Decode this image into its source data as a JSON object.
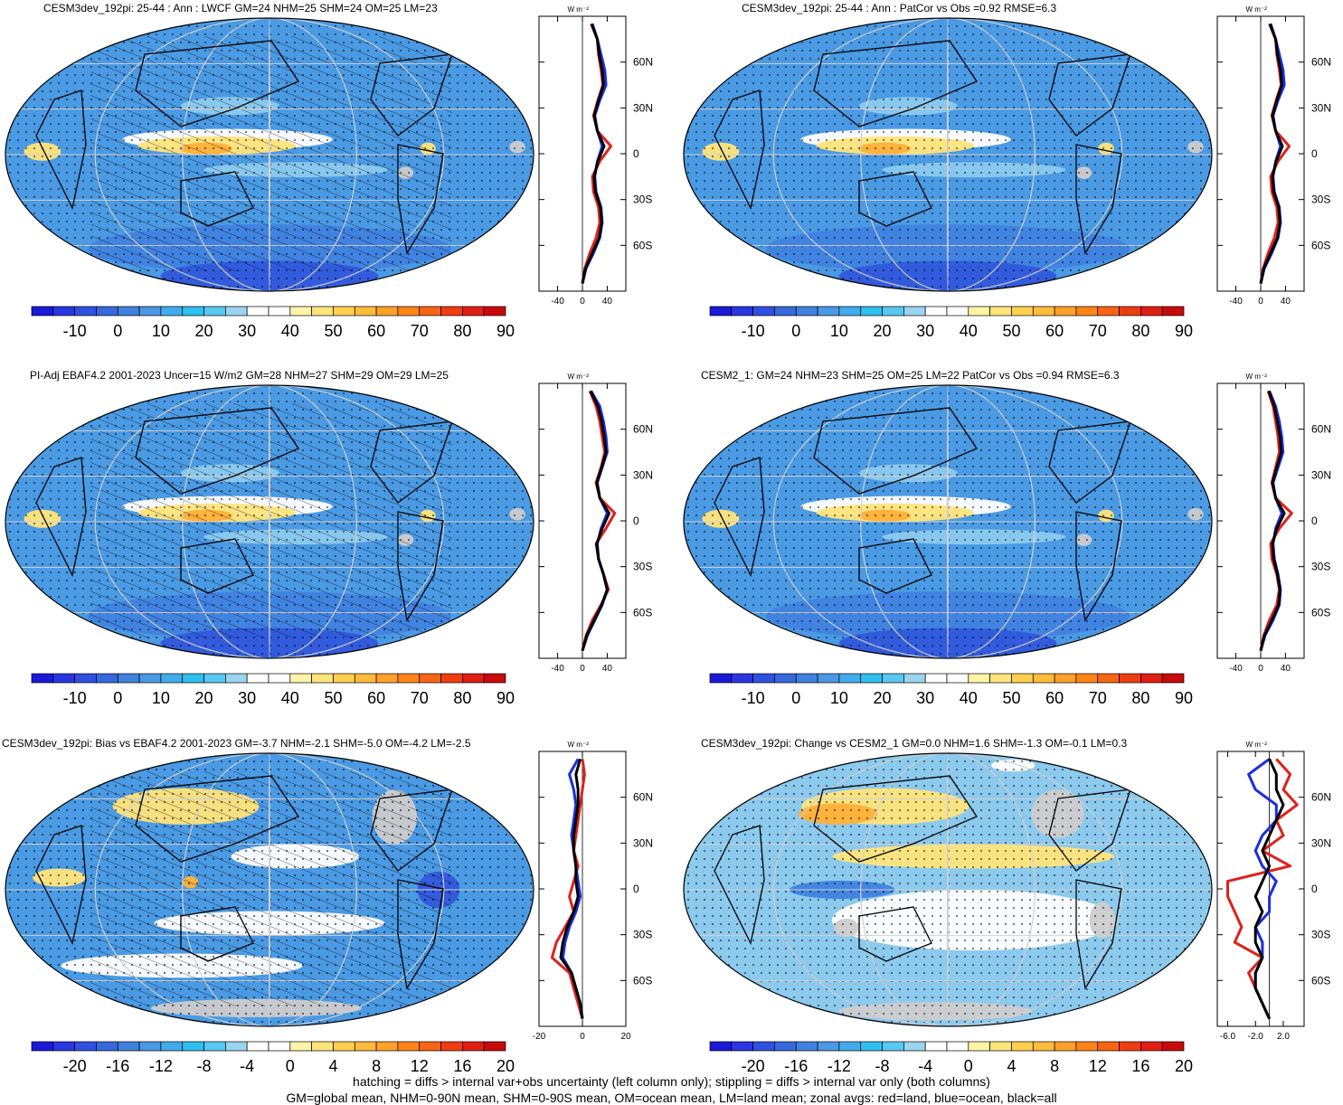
{
  "chart_data": [
    {
      "type": "heatmap",
      "title": "CESM3dev_192pi: 25-44 : Ann : LWCF GM=24 NHM=25 SHM=24 OM=25 LM=23",
      "colorbar": {
        "labels": [
          "-10",
          "0",
          "10",
          "20",
          "30",
          "40",
          "50",
          "60",
          "70",
          "80",
          "90"
        ],
        "palette": "field"
      },
      "zonal_avg": {
        "unit": "W m⁻²",
        "ylim": [
          -90,
          90
        ],
        "xlim": [
          -70,
          70
        ],
        "xticks": [
          "-40",
          "0",
          "40"
        ],
        "yticks": [
          {
            "lat": 60,
            "label": "60N"
          },
          {
            "lat": 30,
            "label": "30N"
          },
          {
            "lat": 0,
            "label": "0"
          },
          {
            "lat": -30,
            "label": "30S"
          },
          {
            "lat": -60,
            "label": "60S"
          }
        ],
        "lat": [
          -85,
          -75,
          -65,
          -55,
          -45,
          -35,
          -25,
          -15,
          -5,
          5,
          15,
          25,
          35,
          45,
          55,
          65,
          75,
          85
        ],
        "series": [
          {
            "color": "#e0201a",
            "values": [
              0,
              4,
              12,
              22,
              28,
              26,
              18,
              16,
              28,
              46,
              24,
              18,
              25,
              33,
              30,
              26,
              24,
              14
            ]
          },
          {
            "color": "#1a2de0",
            "values": [
              0,
              6,
              18,
              28,
              32,
              30,
              22,
              20,
              24,
              32,
              24,
              20,
              28,
              38,
              36,
              30,
              24,
              16
            ]
          },
          {
            "color": "#000000",
            "values": [
              0,
              5,
              16,
              27,
              31,
              29,
              21,
              19,
              25,
              35,
              24,
              19,
              26,
              34,
              32,
              27,
              24,
              15
            ]
          }
        ]
      }
    },
    {
      "type": "heatmap",
      "title": "CESM3dev_192pi: 25-44 : Ann : PatCor vs Obs =0.92 RMSE=6.3",
      "colorbar": {
        "labels": [
          "-10",
          "0",
          "10",
          "20",
          "30",
          "40",
          "50",
          "60",
          "70",
          "80",
          "90"
        ],
        "palette": "field"
      },
      "zonal_avg": {
        "unit": "W m⁻²",
        "ylim": [
          -90,
          90
        ],
        "xlim": [
          -70,
          70
        ],
        "xticks": [
          "-40",
          "0",
          "40"
        ],
        "yticks": [
          {
            "lat": 60,
            "label": "60N"
          },
          {
            "lat": 30,
            "label": "30N"
          },
          {
            "lat": 0,
            "label": "0"
          },
          {
            "lat": -30,
            "label": "30S"
          },
          {
            "lat": -60,
            "label": "60S"
          }
        ],
        "lat": [
          -85,
          -75,
          -65,
          -55,
          -45,
          -35,
          -25,
          -15,
          -5,
          5,
          15,
          25,
          35,
          45,
          55,
          65,
          75,
          85
        ],
        "series": [
          {
            "color": "#e0201a",
            "values": [
              0,
              4,
              12,
              22,
              28,
              26,
              18,
              16,
              28,
              46,
              24,
              18,
              25,
              33,
              30,
              26,
              24,
              14
            ]
          },
          {
            "color": "#1a2de0",
            "values": [
              0,
              6,
              18,
              28,
              32,
              30,
              22,
              20,
              24,
              32,
              24,
              20,
              28,
              38,
              36,
              30,
              24,
              16
            ]
          },
          {
            "color": "#000000",
            "values": [
              0,
              5,
              16,
              27,
              31,
              29,
              21,
              19,
              25,
              35,
              24,
              19,
              26,
              34,
              32,
              27,
              24,
              15
            ]
          }
        ]
      }
    },
    {
      "type": "heatmap",
      "title": "PI-Adj EBAF4.2 2001-2023 Uncer=15 W/m2 GM=28 NHM=27 SHM=29 OM=29 LM=25",
      "colorbar": {
        "labels": [
          "-10",
          "0",
          "10",
          "20",
          "30",
          "40",
          "50",
          "60",
          "70",
          "80",
          "90"
        ],
        "palette": "field"
      },
      "zonal_avg": {
        "unit": "W m⁻²",
        "ylim": [
          -90,
          90
        ],
        "xlim": [
          -70,
          70
        ],
        "xticks": [
          "-40",
          "0",
          "40"
        ],
        "yticks": [
          {
            "lat": 60,
            "label": "60N"
          },
          {
            "lat": 30,
            "label": "30N"
          },
          {
            "lat": 0,
            "label": "0"
          },
          {
            "lat": -30,
            "label": "30S"
          },
          {
            "lat": -60,
            "label": "60S"
          }
        ],
        "lat": [
          -85,
          -75,
          -65,
          -55,
          -45,
          -35,
          -25,
          -15,
          -5,
          5,
          15,
          25,
          35,
          45,
          55,
          65,
          75,
          85
        ],
        "series": [
          {
            "color": "#e0201a",
            "values": [
              0,
              6,
              16,
              30,
              42,
              34,
              26,
              22,
              38,
              52,
              28,
              22,
              30,
              36,
              32,
              28,
              22,
              12
            ]
          },
          {
            "color": "#1a2de0",
            "values": [
              0,
              8,
              20,
              32,
              40,
              34,
              26,
              24,
              30,
              40,
              28,
              24,
              32,
              40,
              38,
              34,
              28,
              14
            ]
          },
          {
            "color": "#000000",
            "values": [
              0,
              7,
              19,
              31,
              40,
              34,
              26,
              23,
              32,
              43,
              28,
              23,
              31,
              38,
              35,
              31,
              25,
              13
            ]
          }
        ]
      }
    },
    {
      "type": "heatmap",
      "title": "CESM2_1: GM=24 NHM=23 SHM=25 OM=25 LM=22 PatCor vs Obs =0.94 RMSE=6.3",
      "colorbar": {
        "labels": [
          "-10",
          "0",
          "10",
          "20",
          "30",
          "40",
          "50",
          "60",
          "70",
          "80",
          "90"
        ],
        "palette": "field"
      },
      "zonal_avg": {
        "unit": "W m⁻²",
        "ylim": [
          -90,
          90
        ],
        "xlim": [
          -70,
          70
        ],
        "xticks": [
          "-40",
          "0",
          "40"
        ],
        "yticks": [
          {
            "lat": 60,
            "label": "60N"
          },
          {
            "lat": 30,
            "label": "30N"
          },
          {
            "lat": 0,
            "label": "0"
          },
          {
            "lat": -30,
            "label": "30S"
          },
          {
            "lat": -60,
            "label": "60S"
          }
        ],
        "lat": [
          -85,
          -75,
          -65,
          -55,
          -45,
          -35,
          -25,
          -15,
          -5,
          5,
          15,
          25,
          35,
          45,
          55,
          65,
          75,
          85
        ],
        "series": [
          {
            "color": "#e0201a",
            "values": [
              0,
              5,
              14,
              26,
              30,
              26,
              18,
              16,
              30,
              50,
              24,
              18,
              24,
              30,
              28,
              24,
              20,
              12
            ]
          },
          {
            "color": "#1a2de0",
            "values": [
              0,
              7,
              20,
              30,
              32,
              28,
              22,
              20,
              24,
              34,
              24,
              20,
              28,
              36,
              34,
              30,
              24,
              14
            ]
          },
          {
            "color": "#000000",
            "values": [
              0,
              6,
              18,
              29,
              31,
              27,
              21,
              19,
              26,
              38,
              24,
              19,
              26,
              33,
              31,
              27,
              22,
              13
            ]
          }
        ]
      }
    },
    {
      "type": "heatmap",
      "title": "CESM3dev_192pi: Bias vs EBAF4.2 2001-2023 GM=-3.7 NHM=-2.1 SHM=-5.0 OM=-4.2 LM=-2.5",
      "colorbar": {
        "labels": [
          "-20",
          "-16",
          "-12",
          "-8",
          "-4",
          "0",
          "4",
          "8",
          "12",
          "16",
          "20"
        ],
        "palette": "diff"
      },
      "zonal_avg": {
        "unit": "W m⁻²",
        "ylim": [
          -90,
          90
        ],
        "xlim": [
          -20,
          20
        ],
        "xticks": [
          "-20",
          "0",
          "20"
        ],
        "yticks": [
          {
            "lat": 60,
            "label": "60N"
          },
          {
            "lat": 30,
            "label": "30N"
          },
          {
            "lat": 0,
            "label": "0"
          },
          {
            "lat": -30,
            "label": "30S"
          },
          {
            "lat": -60,
            "label": "60S"
          }
        ],
        "lat": [
          -85,
          -75,
          -65,
          -55,
          -45,
          -35,
          -25,
          -15,
          -5,
          5,
          15,
          25,
          35,
          45,
          55,
          65,
          75,
          85
        ],
        "series": [
          {
            "color": "#e0201a",
            "values": [
              0,
              -2,
              -4,
              -6,
              -14,
              -12,
              -8,
              -4,
              -6,
              -4,
              -2,
              -4,
              -3,
              -2,
              -1,
              0,
              1,
              0
            ]
          },
          {
            "color": "#1a2de0",
            "values": [
              0,
              -1,
              -3,
              -5,
              -9,
              -8,
              -6,
              -3,
              -1,
              -2,
              -3,
              -4,
              -5,
              -4,
              -3,
              -4,
              -6,
              -2
            ]
          },
          {
            "color": "#000000",
            "values": [
              0,
              -1,
              -3,
              -5,
              -10,
              -9,
              -7,
              -4,
              -2,
              -3,
              -3,
              -4,
              -4,
              -3,
              -2,
              -2,
              -3,
              -1
            ]
          }
        ]
      }
    },
    {
      "type": "heatmap",
      "title": "CESM3dev_192pi: Change vs CESM2_1 GM=0.0 NHM=1.6 SHM=-1.3 OM=-0.1 LM=0.3",
      "colorbar": {
        "labels": [
          "-20",
          "-16",
          "-12",
          "-8",
          "-4",
          "0",
          "4",
          "8",
          "12",
          "16",
          "20"
        ],
        "palette": "diff"
      },
      "zonal_avg": {
        "unit": "W m⁻²",
        "ylim": [
          -90,
          90
        ],
        "xlim": [
          -7.5,
          5
        ],
        "xticks": [
          "-6.0",
          "-2.0",
          "2.0"
        ],
        "yticks": [
          {
            "lat": 60,
            "label": "60N"
          },
          {
            "lat": 30,
            "label": "30N"
          },
          {
            "lat": 0,
            "label": "0"
          },
          {
            "lat": -30,
            "label": "30S"
          },
          {
            "lat": -60,
            "label": "60S"
          }
        ],
        "lat": [
          -85,
          -75,
          -65,
          -55,
          -45,
          -35,
          -25,
          -15,
          -5,
          5,
          15,
          25,
          35,
          45,
          55,
          65,
          75,
          85
        ],
        "series": [
          {
            "color": "#e0201a",
            "values": [
              0,
              -1,
              -2,
              -3,
              -1,
              -5,
              -4,
              -5,
              -6,
              -6,
              3,
              -1,
              2,
              1,
              4,
              2,
              3,
              1
            ]
          },
          {
            "color": "#1a2de0",
            "values": [
              0,
              -1,
              -2,
              -2,
              -1,
              -1,
              -2,
              0,
              0,
              1,
              -1,
              -2,
              -1,
              1,
              1,
              -2,
              -3,
              0
            ]
          },
          {
            "color": "#000000",
            "values": [
              0,
              -1,
              -2,
              -2,
              -1,
              -2,
              -2,
              -1,
              -2,
              -1,
              0,
              -1,
              0,
              1,
              2,
              1,
              1,
              0
            ]
          }
        ]
      }
    }
  ],
  "palettes": {
    "field": [
      "#1a1ad8",
      "#2a36e0",
      "#3050e2",
      "#3768dd",
      "#3f82e0",
      "#4a98e6",
      "#40acec",
      "#2ec0f0",
      "#58c8f2",
      "#9ad4ee",
      "#ffffff",
      "#ffffff",
      "#fff3a8",
      "#ffe47a",
      "#ffd050",
      "#ffbc3a",
      "#ffa02a",
      "#ff8418",
      "#f86412",
      "#ee3d12",
      "#e01e14",
      "#c80a0a"
    ],
    "diff": [
      "#1a1ad8",
      "#2a36e0",
      "#3050e2",
      "#3768dd",
      "#3f82e0",
      "#4a98e6",
      "#40acec",
      "#2ec0f0",
      "#58c8f2",
      "#9ad4ee",
      "#ffffff",
      "#ffffff",
      "#fff3a8",
      "#ffe47a",
      "#ffd050",
      "#ffbc3a",
      "#ffa02a",
      "#ff8418",
      "#f86412",
      "#ee3d12",
      "#e01e14",
      "#c80a0a"
    ]
  },
  "colors": {
    "ocean_blue": "#4a9ae4",
    "mid_blue": "#3f82e0",
    "deep_blue": "#3058dc",
    "light_blue": "#8ccaee",
    "yellow": "#ffe47a",
    "orange": "#ffb038",
    "red": "#f05a14",
    "land_gray": "#cccccc"
  },
  "footnote": {
    "line1": "hatching = diffs > internal var+obs uncertainty (left column only); stippling = diffs > internal var only (both columns)",
    "line2": "GM=global mean, NHM=0-90N mean, SHM=0-90S mean, OM=ocean mean, LM=land mean; zonal avgs: red=land, blue=ocean, black=all"
  }
}
